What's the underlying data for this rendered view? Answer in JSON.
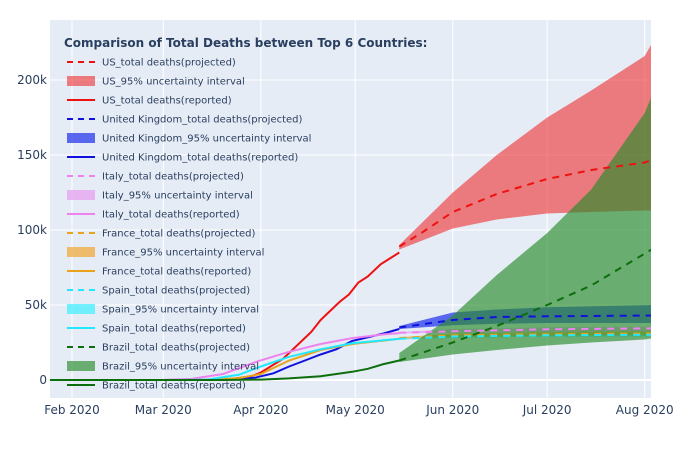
{
  "chart_data": {
    "type": "line",
    "title": "",
    "xlabel": "",
    "ylabel": "",
    "x_range": [
      "2020-01-25",
      "2020-08-03"
    ],
    "ylim": [
      -12000,
      240000
    ],
    "grid": true,
    "legend_title": "Comparison of Total Deaths between Top 6 Countries:",
    "legend_position": "top-left",
    "x_ticks": [
      {
        "date": "2020-02-01",
        "label": "Feb 2020"
      },
      {
        "date": "2020-03-01",
        "label": "Mar 2020"
      },
      {
        "date": "2020-04-01",
        "label": "Apr 2020"
      },
      {
        "date": "2020-05-01",
        "label": "May 2020"
      },
      {
        "date": "2020-06-01",
        "label": "Jun 2020"
      },
      {
        "date": "2020-07-01",
        "label": "Jul 2020"
      },
      {
        "date": "2020-08-01",
        "label": "Aug 2020"
      }
    ],
    "y_ticks": [
      {
        "value": 0,
        "label": "0"
      },
      {
        "value": 50000,
        "label": "50k"
      },
      {
        "value": 100000,
        "label": "100k"
      },
      {
        "value": 150000,
        "label": "150k"
      },
      {
        "value": 200000,
        "label": "200k"
      }
    ],
    "countries": [
      {
        "key": "us",
        "color": "#ee1111",
        "band_color": "rgba(240,40,40,0.58)",
        "projected_name": "US_total deaths(projected)",
        "band_name": "US_95% uncertainty interval",
        "reported_name": "US_total deaths(reported)",
        "reported": [
          [
            "2020-01-25",
            0
          ],
          [
            "2020-03-01",
            0
          ],
          [
            "2020-03-15",
            100
          ],
          [
            "2020-03-22",
            500
          ],
          [
            "2020-03-29",
            2500
          ],
          [
            "2020-04-01",
            5000
          ],
          [
            "2020-04-08",
            14000
          ],
          [
            "2020-04-12",
            22000
          ],
          [
            "2020-04-17",
            32000
          ],
          [
            "2020-04-20",
            40000
          ],
          [
            "2020-04-22",
            44000
          ],
          [
            "2020-04-26",
            52000
          ],
          [
            "2020-04-29",
            57000
          ],
          [
            "2020-05-02",
            65000
          ],
          [
            "2020-05-05",
            69000
          ],
          [
            "2020-05-09",
            77000
          ],
          [
            "2020-05-12",
            81000
          ],
          [
            "2020-05-15",
            85000
          ]
        ],
        "projected": [
          [
            "2020-05-15",
            89000
          ],
          [
            "2020-05-22",
            98000
          ],
          [
            "2020-06-01",
            112000
          ],
          [
            "2020-06-15",
            124000
          ],
          [
            "2020-07-01",
            134000
          ],
          [
            "2020-07-15",
            140000
          ],
          [
            "2020-08-01",
            145000
          ],
          [
            "2020-08-04",
            147000
          ]
        ],
        "band_upper": [
          [
            "2020-05-15",
            90000
          ],
          [
            "2020-06-01",
            125000
          ],
          [
            "2020-06-15",
            150000
          ],
          [
            "2020-07-01",
            175000
          ],
          [
            "2020-07-15",
            193000
          ],
          [
            "2020-08-01",
            216000
          ],
          [
            "2020-08-04",
            227000
          ]
        ],
        "band_lower": [
          [
            "2020-05-15",
            87000
          ],
          [
            "2020-06-01",
            101000
          ],
          [
            "2020-06-15",
            107000
          ],
          [
            "2020-07-01",
            111000
          ],
          [
            "2020-07-15",
            112000
          ],
          [
            "2020-08-01",
            113000
          ],
          [
            "2020-08-04",
            113000
          ]
        ]
      },
      {
        "key": "uk",
        "color": "#1111dd",
        "band_color": "rgba(40,60,235,0.75)",
        "projected_name": "United Kingdom_total deaths(projected)",
        "band_name": "United Kingdom_95% uncertainty interval",
        "reported_name": "United Kingdom_total deaths(reported)",
        "reported": [
          [
            "2020-01-25",
            0
          ],
          [
            "2020-03-10",
            0
          ],
          [
            "2020-03-20",
            200
          ],
          [
            "2020-03-30",
            1500
          ],
          [
            "2020-04-05",
            4500
          ],
          [
            "2020-04-10",
            9000
          ],
          [
            "2020-04-15",
            13000
          ],
          [
            "2020-04-20",
            17000
          ],
          [
            "2020-04-25",
            20500
          ],
          [
            "2020-04-30",
            26000
          ],
          [
            "2020-05-05",
            28500
          ],
          [
            "2020-05-10",
            31000
          ],
          [
            "2020-05-15",
            34000
          ]
        ],
        "projected": [
          [
            "2020-05-15",
            35000
          ],
          [
            "2020-06-01",
            40000
          ],
          [
            "2020-06-15",
            42000
          ],
          [
            "2020-07-01",
            42500
          ],
          [
            "2020-08-04",
            43000
          ]
        ],
        "band_upper": [
          [
            "2020-05-15",
            36000
          ],
          [
            "2020-06-01",
            45000
          ],
          [
            "2020-06-15",
            47000
          ],
          [
            "2020-07-01",
            48500
          ],
          [
            "2020-08-04",
            50000
          ]
        ],
        "band_lower": [
          [
            "2020-05-15",
            34000
          ],
          [
            "2020-06-01",
            36500
          ],
          [
            "2020-06-15",
            37500
          ],
          [
            "2020-07-01",
            38000
          ],
          [
            "2020-08-04",
            38000
          ]
        ]
      },
      {
        "key": "italy",
        "color": "#ee82ee",
        "band_color": "rgba(230,170,238,0.85)",
        "projected_name": "Italy_total deaths(projected)",
        "band_name": "Italy_95% uncertainty interval",
        "reported_name": "Italy_total deaths(reported)",
        "reported": [
          [
            "2020-01-25",
            0
          ],
          [
            "2020-02-22",
            0
          ],
          [
            "2020-03-01",
            50
          ],
          [
            "2020-03-10",
            700
          ],
          [
            "2020-03-20",
            4000
          ],
          [
            "2020-03-31",
            12500
          ],
          [
            "2020-04-10",
            18800
          ],
          [
            "2020-04-20",
            24000
          ],
          [
            "2020-04-30",
            27900
          ],
          [
            "2020-05-10",
            30400
          ],
          [
            "2020-05-15",
            31300
          ]
        ],
        "projected": [
          [
            "2020-05-15",
            31500
          ],
          [
            "2020-06-01",
            32500
          ],
          [
            "2020-07-01",
            33800
          ],
          [
            "2020-08-04",
            34500
          ]
        ],
        "band_upper": [
          [
            "2020-05-15",
            32000
          ],
          [
            "2020-06-01",
            34000
          ],
          [
            "2020-07-01",
            35000
          ],
          [
            "2020-08-04",
            35500
          ]
        ],
        "band_lower": [
          [
            "2020-05-15",
            31000
          ],
          [
            "2020-06-01",
            31500
          ],
          [
            "2020-07-01",
            32000
          ],
          [
            "2020-08-04",
            32500
          ]
        ]
      },
      {
        "key": "france",
        "color": "#e8a21c",
        "band_color": "rgba(240,170,60,0.75)",
        "projected_name": "France_total deaths(projected)",
        "band_name": "France_95% uncertainty interval",
        "reported_name": "France_total deaths(reported)",
        "reported": [
          [
            "2020-01-25",
            0
          ],
          [
            "2020-03-05",
            0
          ],
          [
            "2020-03-15",
            100
          ],
          [
            "2020-03-25",
            1300
          ],
          [
            "2020-04-01",
            4000
          ],
          [
            "2020-04-10",
            13000
          ],
          [
            "2020-04-20",
            20000
          ],
          [
            "2020-04-30",
            24000
          ],
          [
            "2020-05-10",
            26300
          ],
          [
            "2020-05-15",
            27500
          ]
        ],
        "projected": [
          [
            "2020-05-15",
            28000
          ],
          [
            "2020-06-01",
            29800
          ],
          [
            "2020-07-01",
            30500
          ],
          [
            "2020-08-04",
            31000
          ]
        ],
        "band_upper": [
          [
            "2020-05-15",
            28500
          ],
          [
            "2020-06-01",
            31000
          ],
          [
            "2020-07-01",
            32000
          ],
          [
            "2020-08-04",
            32500
          ]
        ],
        "band_lower": [
          [
            "2020-05-15",
            27500
          ],
          [
            "2020-06-01",
            28500
          ],
          [
            "2020-07-01",
            29500
          ],
          [
            "2020-08-04",
            30000
          ]
        ]
      },
      {
        "key": "spain",
        "color": "#22e8ff",
        "band_color": "rgba(90,240,255,0.85)",
        "projected_name": "Spain_total deaths(projected)",
        "band_name": "Spain_95% uncertainty interval",
        "reported_name": "Spain_total deaths(reported)",
        "reported": [
          [
            "2020-01-25",
            0
          ],
          [
            "2020-03-05",
            0
          ],
          [
            "2020-03-15",
            300
          ],
          [
            "2020-03-25",
            3500
          ],
          [
            "2020-04-01",
            9000
          ],
          [
            "2020-04-10",
            15500
          ],
          [
            "2020-04-20",
            20500
          ],
          [
            "2020-04-30",
            24500
          ],
          [
            "2020-05-10",
            26500
          ],
          [
            "2020-05-15",
            27400
          ]
        ],
        "projected": [
          [
            "2020-05-15",
            27500
          ],
          [
            "2020-06-01",
            29000
          ],
          [
            "2020-07-01",
            29800
          ],
          [
            "2020-08-04",
            30200
          ]
        ],
        "band_upper": [
          [
            "2020-05-15",
            28000
          ],
          [
            "2020-06-01",
            30000
          ],
          [
            "2020-07-01",
            31000
          ],
          [
            "2020-08-04",
            31500
          ]
        ],
        "band_lower": [
          [
            "2020-05-15",
            27000
          ],
          [
            "2020-06-01",
            28000
          ],
          [
            "2020-07-01",
            28800
          ],
          [
            "2020-08-04",
            29000
          ]
        ]
      },
      {
        "key": "brazil",
        "color": "#0d6e0d",
        "band_color": "rgba(40,140,40,0.65)",
        "projected_name": "Brazil_total deaths(projected)",
        "band_name": "Brazil_95% uncertainty interval",
        "reported_name": "Brazil_total deaths(reported)",
        "reported": [
          [
            "2020-01-25",
            0
          ],
          [
            "2020-03-20",
            0
          ],
          [
            "2020-04-01",
            300
          ],
          [
            "2020-04-10",
            1100
          ],
          [
            "2020-04-20",
            2500
          ],
          [
            "2020-04-30",
            5500
          ],
          [
            "2020-05-05",
            7500
          ],
          [
            "2020-05-10",
            10600
          ],
          [
            "2020-05-15",
            13000
          ]
        ],
        "projected": [
          [
            "2020-05-15",
            13000
          ],
          [
            "2020-06-01",
            25000
          ],
          [
            "2020-06-15",
            36000
          ],
          [
            "2020-07-01",
            50000
          ],
          [
            "2020-07-15",
            63000
          ],
          [
            "2020-08-04",
            88000
          ]
        ],
        "band_upper": [
          [
            "2020-05-15",
            18000
          ],
          [
            "2020-06-01",
            43000
          ],
          [
            "2020-06-15",
            70000
          ],
          [
            "2020-07-01",
            98000
          ],
          [
            "2020-07-15",
            127000
          ],
          [
            "2020-08-01",
            178000
          ],
          [
            "2020-08-04",
            193000
          ]
        ],
        "band_lower": [
          [
            "2020-05-15",
            12000
          ],
          [
            "2020-06-01",
            17000
          ],
          [
            "2020-06-15",
            20000
          ],
          [
            "2020-07-01",
            23000
          ],
          [
            "2020-07-15",
            25000
          ],
          [
            "2020-08-01",
            27000
          ],
          [
            "2020-08-04",
            28000
          ]
        ]
      }
    ]
  }
}
